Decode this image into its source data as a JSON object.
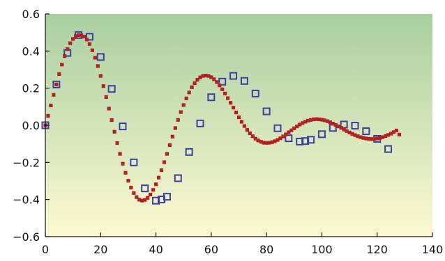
{
  "chart_data": {
    "type": "scatter",
    "title": "",
    "xlabel": "",
    "ylabel": "",
    "xlim": [
      0,
      140
    ],
    "ylim": [
      -0.6,
      0.6
    ],
    "xticks": [
      0,
      20,
      40,
      60,
      80,
      100,
      120,
      140
    ],
    "xtick_labels": [
      "0",
      "20",
      "40",
      "60",
      "80",
      "100",
      "120",
      "140"
    ],
    "yticks": [
      -0.6,
      -0.4,
      -0.2,
      0.0,
      0.2,
      0.4,
      0.6
    ],
    "ytick_labels": [
      "−0.6",
      "−0.4",
      "−0.2",
      "0.0",
      "0.2",
      "0.4",
      "0.6"
    ],
    "grid": false,
    "legend": "none",
    "background_gradient": {
      "top": "#a8cfa0",
      "bottom": "#fdf9d2"
    },
    "series": [
      {
        "marker": "square-filled",
        "color": "#b22222",
        "x": [
          0,
          1,
          2,
          3,
          4,
          5,
          6,
          7,
          8,
          9,
          10,
          11,
          12,
          13,
          14,
          15,
          16,
          17,
          18,
          19,
          20,
          21,
          22,
          23,
          24,
          25,
          26,
          27,
          28,
          29,
          30,
          31,
          32,
          33,
          34,
          35,
          36,
          37,
          38,
          39,
          40,
          41,
          42,
          43,
          44,
          45,
          46,
          47,
          48,
          49,
          50,
          51,
          52,
          53,
          54,
          55,
          56,
          57,
          58,
          59,
          60,
          61,
          62,
          63,
          64,
          65,
          66,
          67,
          68,
          69,
          70,
          71,
          72,
          73,
          74,
          75,
          76,
          77,
          78,
          79,
          80,
          81,
          82,
          83,
          84,
          85,
          86,
          87,
          88,
          89,
          90,
          91,
          92,
          93,
          94,
          95,
          96,
          97,
          98,
          99,
          100,
          101,
          102,
          103,
          104,
          105,
          106,
          107,
          108,
          109,
          110,
          111,
          112,
          113,
          114,
          115,
          116,
          117,
          118,
          119,
          120,
          121,
          122,
          123,
          124,
          125,
          126,
          127,
          128
        ],
        "y": [
          0.0,
          0.051,
          0.107,
          0.164,
          0.22,
          0.276,
          0.327,
          0.373,
          0.41,
          0.442,
          0.465,
          0.48,
          0.486,
          0.485,
          0.478,
          0.462,
          0.438,
          0.404,
          0.364,
          0.319,
          0.266,
          0.211,
          0.152,
          0.09,
          0.028,
          -0.035,
          -0.096,
          -0.154,
          -0.207,
          -0.256,
          -0.299,
          -0.336,
          -0.365,
          -0.387,
          -0.401,
          -0.406,
          -0.402,
          -0.391,
          -0.373,
          -0.348,
          -0.318,
          -0.282,
          -0.242,
          -0.199,
          -0.154,
          -0.107,
          -0.061,
          -0.015,
          0.029,
          0.071,
          0.109,
          0.145,
          0.177,
          0.205,
          0.227,
          0.245,
          0.258,
          0.266,
          0.268,
          0.266,
          0.259,
          0.248,
          0.233,
          0.215,
          0.194,
          0.171,
          0.146,
          0.121,
          0.095,
          0.069,
          0.043,
          0.019,
          -0.004,
          -0.025,
          -0.043,
          -0.059,
          -0.072,
          -0.082,
          -0.089,
          -0.094,
          -0.095,
          -0.094,
          -0.091,
          -0.086,
          -0.079,
          -0.07,
          -0.06,
          -0.049,
          -0.038,
          -0.027,
          -0.016,
          -0.006,
          0.004,
          0.012,
          0.019,
          0.025,
          0.029,
          0.032,
          0.033,
          0.032,
          0.03,
          0.027,
          0.022,
          0.016,
          0.009,
          0.002,
          -0.006,
          -0.014,
          -0.023,
          -0.031,
          -0.039,
          -0.046,
          -0.053,
          -0.059,
          -0.064,
          -0.068,
          -0.071,
          -0.073,
          -0.074,
          -0.073,
          -0.071,
          -0.068,
          -0.064,
          -0.058,
          -0.052,
          -0.045,
          -0.037,
          -0.028,
          -0.05
        ]
      },
      {
        "marker": "square-open",
        "color": "#3b3f9e",
        "x": [
          0,
          4,
          8,
          12,
          16,
          20,
          24,
          28,
          32,
          36,
          40,
          42,
          44,
          48,
          52,
          56,
          60,
          64,
          68,
          72,
          76,
          80,
          84,
          88,
          92,
          94,
          96,
          100,
          104,
          108,
          112,
          116,
          120,
          124
        ],
        "y": [
          0.0,
          0.22,
          0.39,
          0.486,
          0.477,
          0.368,
          0.196,
          -0.006,
          -0.2,
          -0.34,
          -0.406,
          -0.4,
          -0.385,
          -0.285,
          -0.144,
          0.01,
          0.151,
          0.235,
          0.266,
          0.239,
          0.171,
          0.075,
          -0.016,
          -0.07,
          -0.088,
          -0.085,
          -0.078,
          -0.048,
          -0.014,
          0.004,
          -0.002,
          -0.032,
          -0.073,
          -0.128
        ]
      }
    ]
  }
}
